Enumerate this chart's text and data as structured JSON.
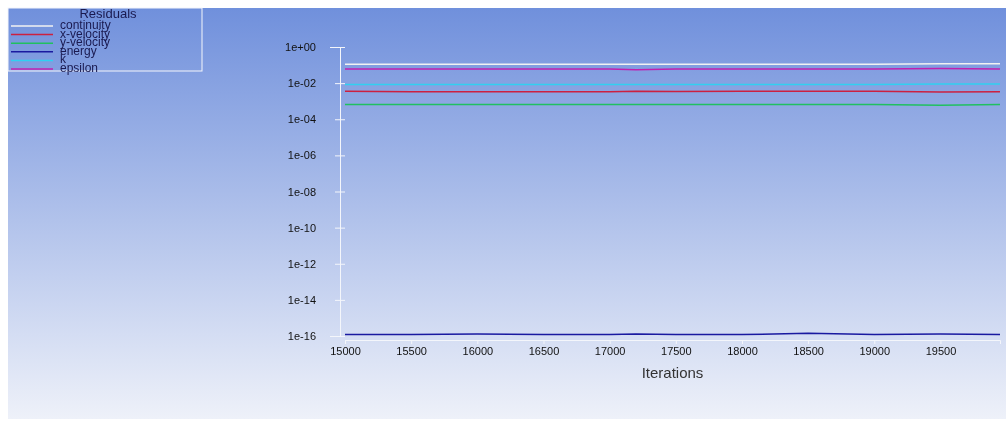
{
  "chart_data": {
    "type": "line",
    "xlabel": "Iterations",
    "legend_title": "Residuals",
    "legend": "top left",
    "log": true,
    "grid": false,
    "marker": "none",
    "line_style": "solid",
    "x": [
      15000,
      15500,
      16000,
      16500,
      17000,
      17200,
      17500,
      18000,
      18500,
      19000,
      19500,
      19950
    ],
    "xlim": [
      15000,
      19950
    ],
    "xticks": [
      15000,
      15500,
      16000,
      16500,
      17000,
      17500,
      18000,
      18500,
      19000,
      19500
    ],
    "ylim": [
      1e-16,
      1
    ],
    "yticks": [
      {
        "value": 1,
        "label": "1e+00"
      },
      {
        "value": 0.01,
        "label": "1e-02"
      },
      {
        "value": 0.0001,
        "label": "1e-04"
      },
      {
        "value": 1e-06,
        "label": "1e-06"
      },
      {
        "value": 1e-08,
        "label": "1e-08"
      },
      {
        "value": 1e-10,
        "label": "1e-10"
      },
      {
        "value": 1e-12,
        "label": "1e-12"
      },
      {
        "value": 1e-14,
        "label": "1e-14"
      },
      {
        "value": 1e-16,
        "label": "1e-16"
      }
    ],
    "series": [
      {
        "name": "continuity",
        "color": "#f2f2f2",
        "values": [
          0.11,
          0.11,
          0.11,
          0.11,
          0.11,
          0.11,
          0.11,
          0.11,
          0.11,
          0.11,
          0.12,
          0.12
        ]
      },
      {
        "name": "x-velocity",
        "color": "#cc2040",
        "values": [
          0.0035,
          0.0033,
          0.0033,
          0.0033,
          0.0033,
          0.0036,
          0.0034,
          0.0035,
          0.0035,
          0.0035,
          0.0032,
          0.0033
        ]
      },
      {
        "name": "y-velocity",
        "color": "#20c060",
        "values": [
          0.00065,
          0.00065,
          0.00065,
          0.00065,
          0.00065,
          0.00065,
          0.00065,
          0.00065,
          0.00065,
          0.00065,
          0.0006,
          0.00065
        ]
      },
      {
        "name": "energy",
        "color": "#1a1aa0",
        "values": [
          1.2e-16,
          1.2e-16,
          1.3e-16,
          1.2e-16,
          1.2e-16,
          1.3e-16,
          1.2e-16,
          1.2e-16,
          1.4e-16,
          1.2e-16,
          1.3e-16,
          1.2e-16
        ]
      },
      {
        "name": "k",
        "color": "#30d0f0",
        "values": [
          0.0085,
          0.0085,
          0.0085,
          0.0085,
          0.0085,
          0.0085,
          0.0085,
          0.0085,
          0.0085,
          0.0085,
          0.009,
          0.009
        ]
      },
      {
        "name": "epsilon",
        "color": "#c020b0",
        "values": [
          0.06,
          0.06,
          0.06,
          0.06,
          0.06,
          0.055,
          0.06,
          0.06,
          0.06,
          0.06,
          0.065,
          0.06
        ]
      }
    ]
  }
}
